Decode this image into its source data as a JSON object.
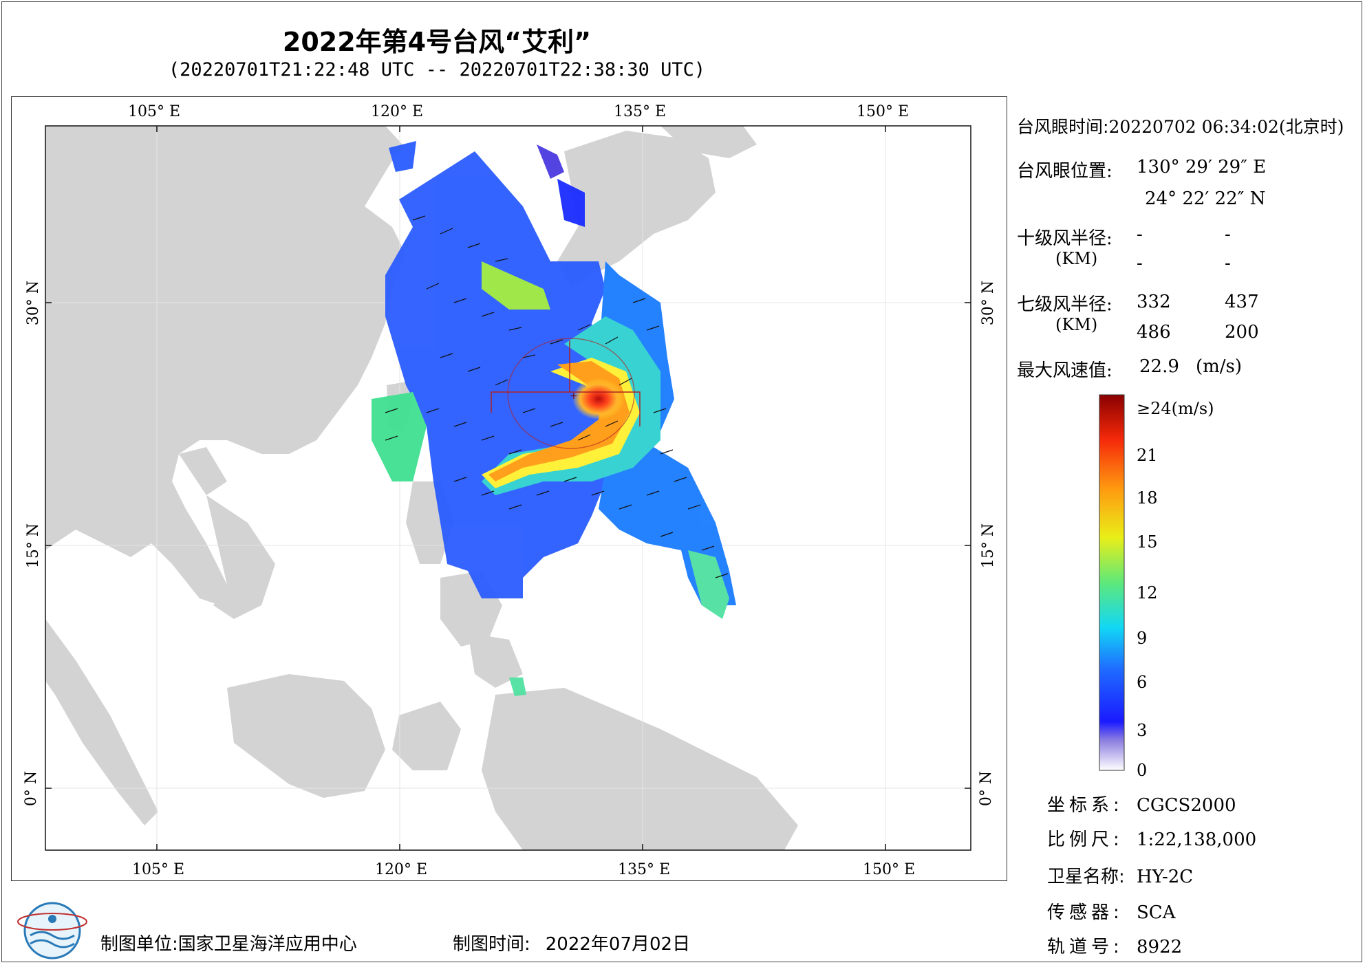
{
  "header": {
    "title": "2022年第4号台风“艾利”",
    "subtitle": "(20220701T21:22:48 UTC -- 20220701T22:38:30 UTC)"
  },
  "map": {
    "lon_labels_top": [
      "105° E",
      "120° E",
      "135° E",
      "150° E"
    ],
    "lon_labels_bottom": [
      "105° E",
      "120° E",
      "135° E",
      "150° E"
    ],
    "lat_labels_left": [
      "30° N",
      "15° N",
      "0° N"
    ],
    "lat_labels_right": [
      "30° N",
      "15° N",
      "0° N"
    ],
    "colors": {
      "land": "#d3d3d3",
      "sea": "#ffffff",
      "circle": "#b02020"
    }
  },
  "typhoon_info": {
    "eye_time_label": "台风眼时间:",
    "eye_time_value": "20220702 06:34:02(北京时)",
    "eye_pos_label": "台风眼位置:",
    "eye_lon": "130° 29′ 29″ E",
    "eye_lat": "24° 22′ 22″ N",
    "r10_label": "十级风半径:",
    "r10_unit": "(KM)",
    "r10_values": [
      "-",
      "-",
      "-",
      "-"
    ],
    "r7_label": "七级风半径:",
    "r7_unit": "(KM)",
    "r7_values": [
      "332",
      "437",
      "486",
      "200"
    ],
    "max_wind_label": "最大风速值:",
    "max_wind_value": "22.9",
    "max_wind_unit": "(m/s)"
  },
  "colorbar": {
    "labels": [
      "≥24(m/s)",
      "21",
      "18",
      "15",
      "12",
      "9",
      "6",
      "3",
      "0"
    ],
    "values": [
      24,
      21,
      18,
      15,
      12,
      9,
      6,
      3,
      0
    ]
  },
  "meta": {
    "crs_label": "坐标系:",
    "crs_value": "CGCS2000",
    "scale_label": "比例尺:",
    "scale_value": "1:22,138,000",
    "sat_label": "卫星名称:",
    "sat_value": "HY-2C",
    "sensor_label": "传感器:",
    "sensor_value": "SCA",
    "orbit_label": "轨道号:",
    "orbit_value": "8922"
  },
  "footer": {
    "unit_label": "制图单位:",
    "unit_value": "国家卫星海洋应用中心",
    "time_label": "制图时间:",
    "time_value": "2022年07月02日"
  }
}
